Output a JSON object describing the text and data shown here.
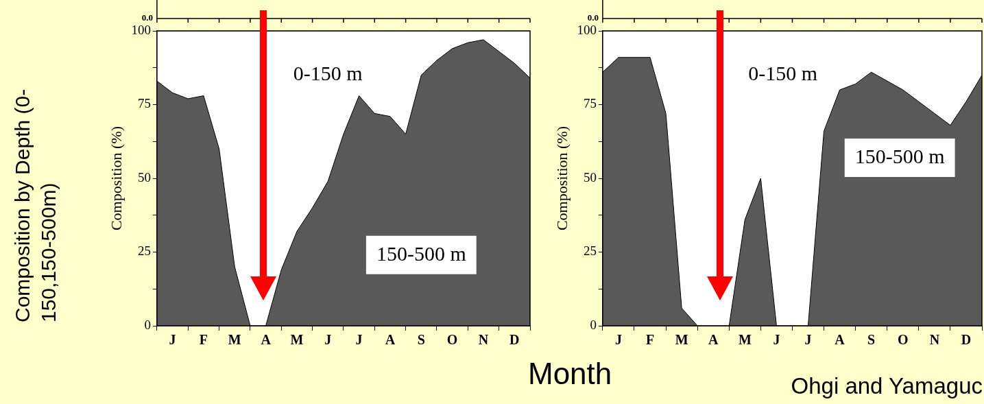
{
  "chart_data": [
    {
      "type": "area",
      "title": "Composition by Depth (0-150,150-500m)",
      "xlabel": "Month",
      "ylabel": "Composition (%)",
      "stacked": true,
      "categories": [
        null,
        "J",
        null,
        "F",
        null,
        "M",
        null,
        "A",
        null,
        "M",
        null,
        "J",
        null,
        "J",
        null,
        "A",
        null,
        "S",
        null,
        "O",
        null,
        "N",
        null,
        "D",
        null
      ],
      "series": [
        {
          "name": "150-500 m",
          "color": "#595959",
          "values": [
            83,
            79,
            77,
            78,
            60,
            20,
            0,
            0,
            19,
            32,
            40,
            49,
            65,
            78,
            72,
            71,
            65,
            85,
            90,
            94,
            96,
            97,
            93,
            89,
            84
          ]
        },
        {
          "name": "0-150 m",
          "color": "#ffffff",
          "values": [
            17,
            21,
            23,
            22,
            40,
            80,
            100,
            100,
            81,
            68,
            60,
            51,
            35,
            22,
            28,
            29,
            35,
            15,
            10,
            6,
            4,
            3,
            7,
            11,
            16
          ]
        }
      ],
      "ylim": [
        0,
        100
      ],
      "yticks": [
        0,
        {
          "value": 12.5,
          "label": null
        },
        25,
        {
          "value": 37.5,
          "label": null
        },
        50,
        {
          "value": 62.5,
          "label": null
        },
        75,
        {
          "value": 87.5,
          "label": null
        },
        100
      ],
      "annotations": [
        "0.0"
      ]
    },
    {
      "type": "area",
      "ylabel": "Composition (%)",
      "stacked": true,
      "categories": [
        null,
        "J",
        null,
        "F",
        null,
        "M",
        null,
        "A",
        null,
        "M",
        null,
        "J",
        null,
        "J",
        null,
        "A",
        null,
        "S",
        null,
        "O",
        null,
        "N",
        null,
        "D",
        null
      ],
      "series": [
        {
          "name": "150-500 m",
          "color": "#595959",
          "values": [
            86,
            91,
            91,
            91,
            72,
            6,
            0,
            0,
            0,
            36,
            50,
            0,
            0,
            0,
            66,
            80,
            82,
            86,
            83,
            80,
            76,
            72,
            68,
            76,
            85
          ]
        },
        {
          "name": "0-150 m",
          "color": "#ffffff",
          "values": [
            14,
            9,
            9,
            9,
            28,
            94,
            100,
            100,
            100,
            64,
            50,
            100,
            100,
            100,
            34,
            20,
            18,
            14,
            17,
            20,
            24,
            28,
            32,
            24,
            15
          ]
        }
      ],
      "ylim": [
        0,
        100
      ],
      "yticks": [
        0,
        {
          "value": 12.5,
          "label": null
        },
        25,
        {
          "value": 37.5,
          "label": null
        },
        50,
        {
          "value": 62.5,
          "label": null
        },
        75,
        {
          "value": 87.5,
          "label": null
        },
        100
      ],
      "annotations": [
        "0.0",
        "Ohgi and Yamaguc"
      ]
    }
  ]
}
